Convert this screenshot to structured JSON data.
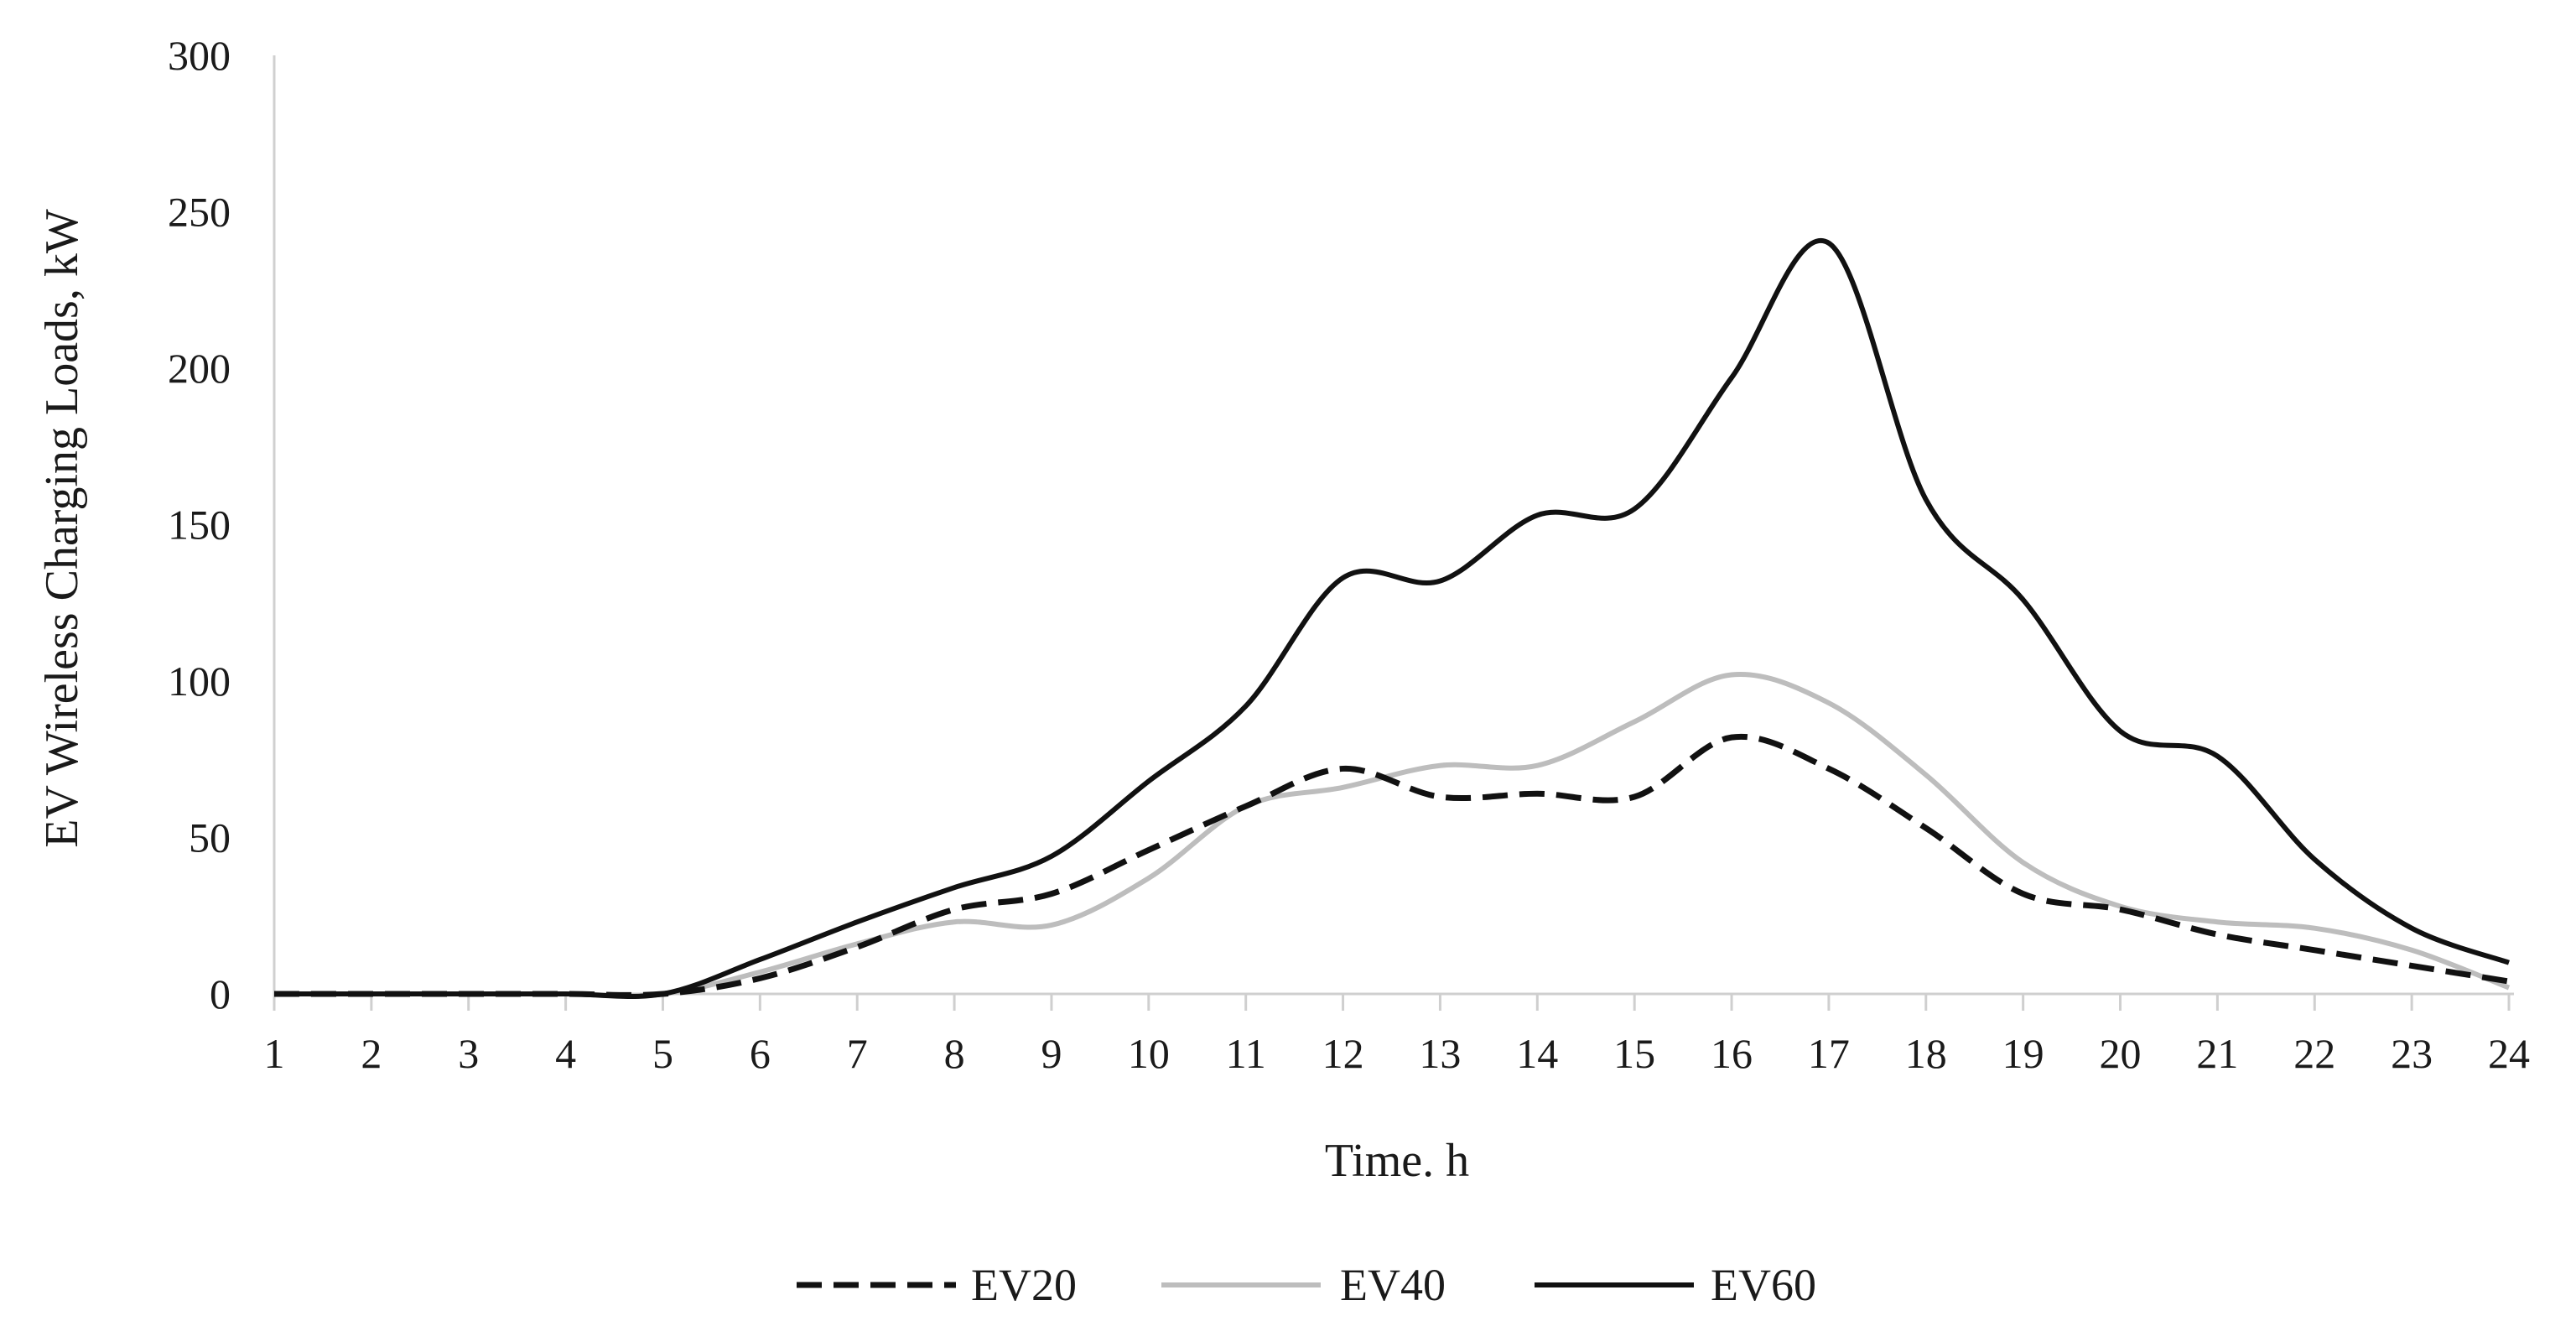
{
  "chart_data": {
    "type": "line",
    "title": "",
    "xlabel": "Time. h",
    "ylabel": "EV Wireless Charging Loads, kW",
    "x": [
      1,
      2,
      3,
      4,
      5,
      6,
      7,
      8,
      9,
      10,
      11,
      12,
      13,
      14,
      15,
      16,
      17,
      18,
      19,
      20,
      21,
      22,
      23,
      24
    ],
    "x_tick_labels": [
      "1",
      "2",
      "3",
      "4",
      "5",
      "6",
      "7",
      "8",
      "9",
      "10",
      "11",
      "12",
      "13",
      "14",
      "15",
      "16",
      "17",
      "18",
      "19",
      "20",
      "21",
      "22",
      "23",
      "24"
    ],
    "ylim": [
      0,
      300
    ],
    "y_ticks": [
      0,
      50,
      100,
      150,
      200,
      250,
      300
    ],
    "y_tick_labels": [
      "0",
      "50",
      "100",
      "150",
      "200",
      "250",
      "300"
    ],
    "grid": false,
    "legend": {
      "position": "bottom"
    },
    "series": [
      {
        "name": "EV20",
        "style": "dashed",
        "color": "#111111",
        "values": [
          0,
          0,
          0,
          0,
          0,
          5,
          15,
          27,
          32,
          46,
          60,
          72,
          63,
          64,
          63,
          82,
          72,
          53,
          32,
          27,
          19,
          14,
          9,
          4
        ]
      },
      {
        "name": "EV40",
        "style": "solid",
        "color": "#bdbdbd",
        "values": [
          0,
          0,
          0,
          0,
          0,
          7,
          16,
          23,
          22,
          37,
          60,
          66,
          73,
          73,
          87,
          102,
          93,
          70,
          42,
          28,
          23,
          21,
          14,
          2
        ]
      },
      {
        "name": "EV60",
        "style": "solid",
        "color": "#111111",
        "values": [
          0,
          0,
          0,
          0,
          0,
          11,
          23,
          34,
          44,
          68,
          92,
          133,
          132,
          153,
          155,
          197,
          240,
          158,
          126,
          84,
          76,
          43,
          21,
          10
        ]
      }
    ]
  }
}
